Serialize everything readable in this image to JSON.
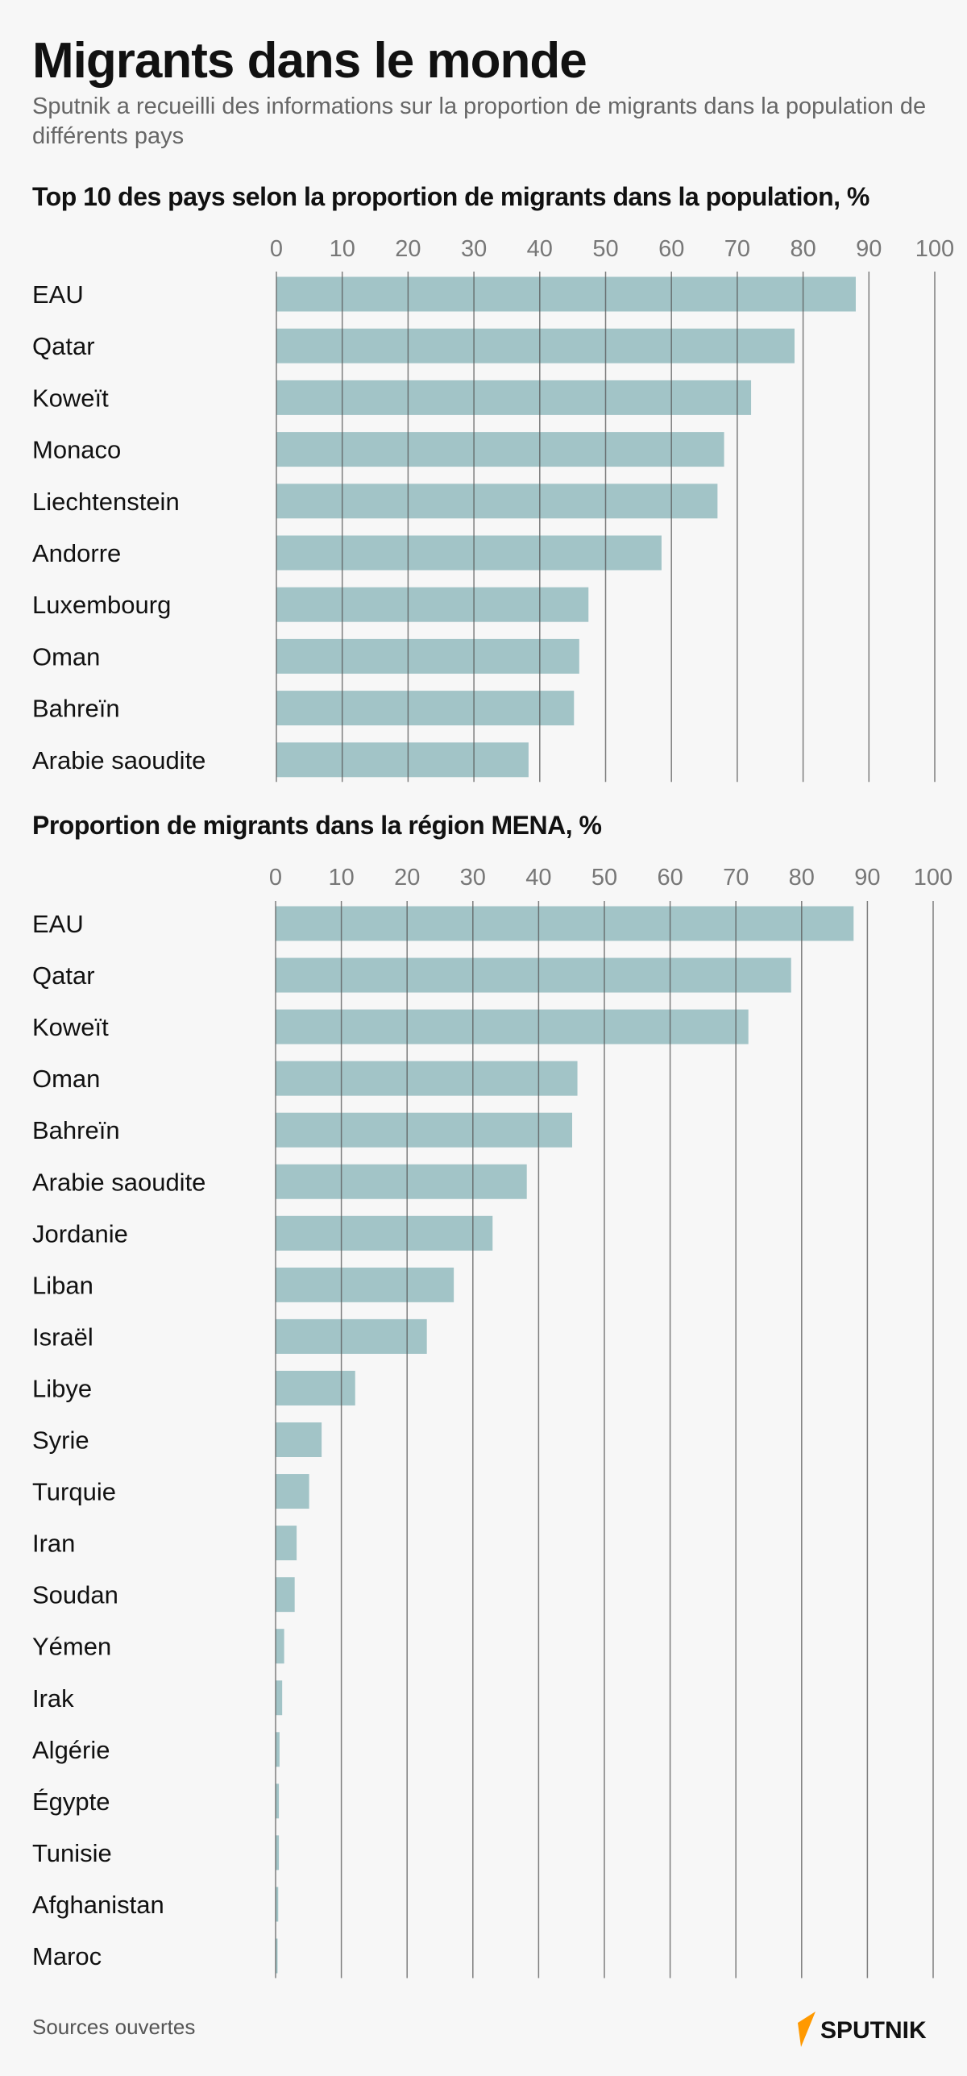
{
  "header": {
    "title": "Migrants dans le monde",
    "subtitle": "Sputnik a recueilli des informations sur la proportion de migrants dans la population de différents pays"
  },
  "colors": {
    "bar": "#a2c4c7",
    "grid": "#555555",
    "tick_label": "#777777",
    "background": "#f7f7f7",
    "logo_accent": "#ff9900"
  },
  "chart_data": [
    {
      "type": "bar",
      "orientation": "horizontal",
      "title": "Top 10 des pays selon la proportion de migrants dans la population, %",
      "categories": [
        "EAU",
        "Qatar",
        "Koweït",
        "Monaco",
        "Liechtenstein",
        "Andorre",
        "Luxembourg",
        "Oman",
        "Bahreïn",
        "Arabie saoudite"
      ],
      "values": [
        88,
        78.7,
        72.1,
        68,
        67,
        58.5,
        47.4,
        46,
        45.2,
        38.3
      ],
      "xlim": [
        0,
        100
      ],
      "ticks": [
        "0",
        "10",
        "20",
        "30",
        "40",
        "50",
        "60",
        "70",
        "80",
        "90",
        "100"
      ],
      "tick_position": "top",
      "grid": true
    },
    {
      "type": "bar",
      "orientation": "horizontal",
      "title": "Proportion de migrants dans la région MENA, %",
      "categories": [
        "EAU",
        "Qatar",
        "Koweït",
        "Oman",
        "Bahreïn",
        "Arabie saoudite",
        "Jordanie",
        "Liban",
        "Israël",
        "Libye",
        "Syrie",
        "Turquie",
        "Iran",
        "Soudan",
        "Yémen",
        "Irak",
        "Algérie",
        "Égypte",
        "Tunisie",
        "Afghanistan",
        "Maroc"
      ],
      "values": [
        87.9,
        78.4,
        71.9,
        45.9,
        45.1,
        38.2,
        33,
        27.1,
        23,
        12.1,
        7,
        5.1,
        3.2,
        2.9,
        1.3,
        1,
        0.6,
        0.5,
        0.5,
        0.4,
        0.3
      ],
      "xlim": [
        0,
        100
      ],
      "ticks": [
        "0",
        "10",
        "20",
        "30",
        "40",
        "50",
        "60",
        "70",
        "80",
        "90",
        "100"
      ],
      "tick_position": "top",
      "grid": true
    }
  ],
  "footer": {
    "source": "Sources ouvertes",
    "logo_text": "SPUTNIK"
  }
}
